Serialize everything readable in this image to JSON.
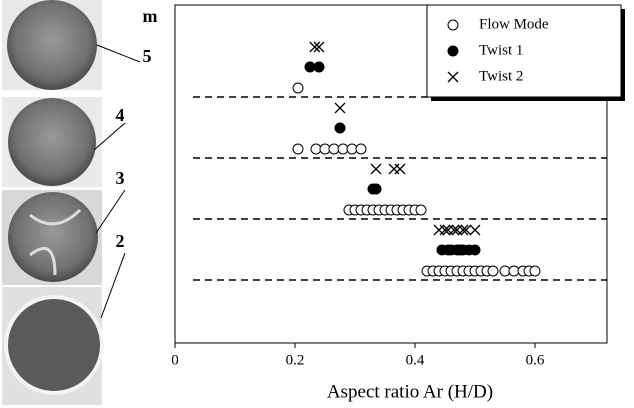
{
  "chart_data": {
    "type": "scatter",
    "x_label": "Aspect ratio Ar   (H/D)",
    "y_label": "m",
    "modes": [
      5,
      4,
      3,
      2
    ],
    "xlim": [
      0,
      0.72
    ],
    "xticks": [
      0,
      0.2,
      0.4,
      0.6
    ],
    "legend": "top-right",
    "series": [
      {
        "name": "Flow Mode",
        "marker": "open-circle",
        "color": "#000000",
        "x": [
          0.205,
          0.205,
          0.235,
          0.25,
          0.265,
          0.28,
          0.295,
          0.31,
          0.29,
          0.3,
          0.31,
          0.32,
          0.33,
          0.34,
          0.35,
          0.36,
          0.37,
          0.38,
          0.39,
          0.4,
          0.41,
          0.42,
          0.43,
          0.44,
          0.45,
          0.46,
          0.47,
          0.48,
          0.49,
          0.5,
          0.51,
          0.52,
          0.53,
          0.55,
          0.565,
          0.58,
          0.59,
          0.6
        ],
        "y": [
          5,
          4,
          4,
          4,
          4,
          4,
          4,
          4,
          3,
          3,
          3,
          3,
          3,
          3,
          3,
          3,
          3,
          3,
          3,
          3,
          3,
          2,
          2,
          2,
          2,
          2,
          2,
          2,
          2,
          2,
          2,
          2,
          2,
          2,
          2,
          2,
          2,
          2
        ]
      },
      {
        "name": "Twist 1",
        "marker": "filled-circle",
        "color": "#000000",
        "x": [
          0.225,
          0.24,
          0.275,
          0.33,
          0.335,
          0.445,
          0.455,
          0.46,
          0.47,
          0.475,
          0.48,
          0.49,
          0.5
        ],
        "y": [
          5,
          5,
          4,
          3,
          3,
          2,
          2,
          2,
          2,
          2,
          2,
          2,
          2
        ]
      },
      {
        "name": "Twist 2",
        "marker": "x",
        "color": "#000000",
        "x": [
          0.233,
          0.24,
          0.275,
          0.335,
          0.365,
          0.375,
          0.44,
          0.45,
          0.455,
          0.465,
          0.47,
          0.48,
          0.485,
          0.5
        ],
        "y": [
          5,
          5,
          4,
          3,
          3,
          3,
          2,
          2,
          2,
          2,
          2,
          2,
          2,
          2
        ]
      }
    ]
  }
}
